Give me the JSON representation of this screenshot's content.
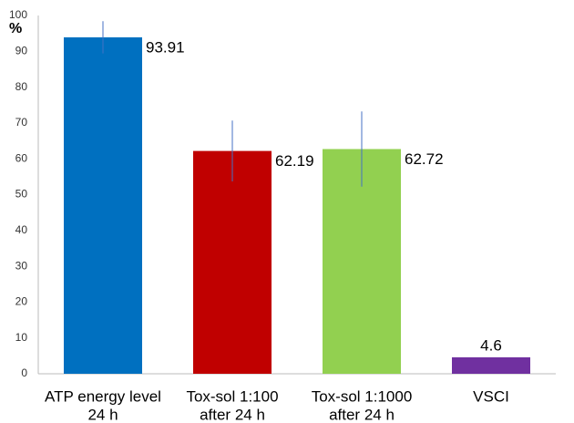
{
  "chart_data": {
    "type": "bar",
    "y_label": "%",
    "categories": [
      [
        "ATP energy level",
        "24 h"
      ],
      [
        "Tox-sol 1:100",
        "after 24 h"
      ],
      [
        "Tox-sol 1:1000",
        "after 24 h"
      ],
      [
        "VSCI"
      ]
    ],
    "values": [
      93.91,
      62.19,
      62.72,
      4.6
    ],
    "errors": [
      4.5,
      8.5,
      10.5,
      null
    ],
    "colors": [
      "#0070c0",
      "#c00000",
      "#92d050",
      "#7030a0"
    ],
    "error_color": "#4472c4",
    "ylim": [
      0,
      100
    ],
    "yticks": [
      0,
      10,
      20,
      30,
      40,
      50,
      60,
      70,
      80,
      90,
      100
    ],
    "grid": false
  }
}
